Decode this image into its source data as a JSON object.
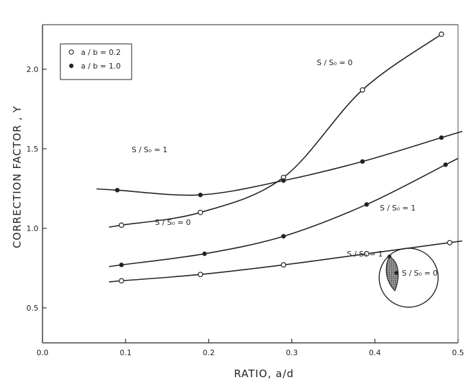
{
  "chart_data": {
    "type": "scatter",
    "xlabel": "RATIO, a/d",
    "ylabel": "CORRECTION FACTOR , Y",
    "xlim": [
      0.0,
      0.5
    ],
    "ylim": [
      0.28,
      2.28
    ],
    "x_ticks": [
      {
        "v": 0.0,
        "label": "0.0"
      },
      {
        "v": 0.1,
        "label": "0.1"
      },
      {
        "v": 0.2,
        "label": "0.2"
      },
      {
        "v": 0.3,
        "label": "0.3"
      },
      {
        "v": 0.4,
        "label": "0.4"
      },
      {
        "v": 0.5,
        "label": "0.5"
      }
    ],
    "y_ticks": [
      {
        "v": 0.5,
        "label": "0.5"
      },
      {
        "v": 1.0,
        "label": "1.0"
      },
      {
        "v": 1.5,
        "label": "1.5"
      },
      {
        "v": 2.0,
        "label": "2.0"
      }
    ],
    "legend": {
      "position": "top-left",
      "entries": [
        {
          "marker": "open",
          "label": "a / b = 0.2"
        },
        {
          "marker": "filled",
          "label": "a / b = 1.0"
        }
      ]
    },
    "series": [
      {
        "marker": "open",
        "label": "S / S₀ = 0",
        "x": [
          0.095,
          0.19,
          0.29,
          0.385,
          0.48
        ],
        "y": [
          1.02,
          1.1,
          1.32,
          1.87,
          2.22
        ]
      },
      {
        "marker": "filled",
        "label": "S / S₀ = 1",
        "x": [
          0.09,
          0.19,
          0.29,
          0.385,
          0.48
        ],
        "y": [
          1.24,
          1.21,
          1.3,
          1.42,
          1.57
        ]
      },
      {
        "marker": "filled",
        "label": "S / S₀ = 0",
        "x": [
          0.095,
          0.195,
          0.29,
          0.39,
          0.485
        ],
        "y": [
          0.77,
          0.84,
          0.95,
          1.15,
          1.4
        ]
      },
      {
        "marker": "open",
        "label": "S / S₀ = 1",
        "x": [
          0.095,
          0.19,
          0.29,
          0.39,
          0.49
        ],
        "y": [
          0.67,
          0.71,
          0.77,
          0.84,
          0.91
        ]
      }
    ],
    "inset_labels": [
      "S / S₀ = 1",
      "S / S₀ = 0"
    ]
  }
}
